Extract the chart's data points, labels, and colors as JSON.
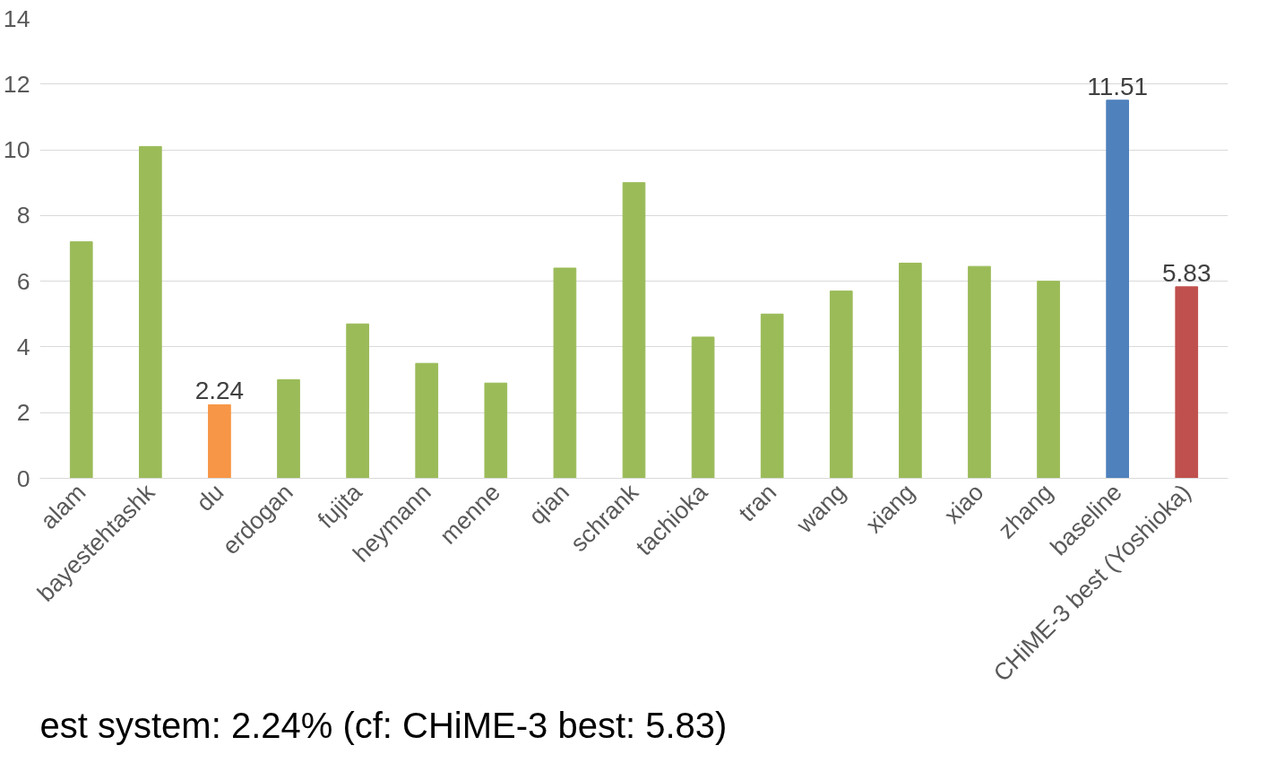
{
  "chart_data": {
    "type": "bar",
    "categories": [
      "alam",
      "bayestehtashk",
      "du",
      "erdogan",
      "fujita",
      "heymann",
      "menne",
      "qian",
      "schrank",
      "tachioka",
      "tran",
      "wang",
      "xiang",
      "xiao",
      "zhang",
      "baseline",
      "CHiME-3 best (Yoshioka)"
    ],
    "values": [
      7.2,
      10.1,
      2.24,
      3.0,
      4.7,
      3.5,
      2.9,
      6.4,
      9.0,
      4.3,
      5.0,
      5.7,
      6.55,
      6.45,
      6.0,
      11.51,
      5.83
    ],
    "colors": [
      "#9bbb59",
      "#9bbb59",
      "#f79646",
      "#9bbb59",
      "#9bbb59",
      "#9bbb59",
      "#9bbb59",
      "#9bbb59",
      "#9bbb59",
      "#9bbb59",
      "#9bbb59",
      "#9bbb59",
      "#9bbb59",
      "#9bbb59",
      "#9bbb59",
      "#4f81bd",
      "#c0504d"
    ],
    "value_labels": [
      null,
      null,
      "2.24",
      null,
      null,
      null,
      null,
      null,
      null,
      null,
      null,
      null,
      null,
      null,
      null,
      "11.51",
      "5.83"
    ],
    "ylim": [
      0,
      14
    ],
    "yticks": [
      0,
      2,
      4,
      6,
      8,
      10,
      12,
      14
    ],
    "grid": "y",
    "annotations": [
      "est system: 2.24% (cf: CHiME-3 best: 5.83)"
    ]
  }
}
